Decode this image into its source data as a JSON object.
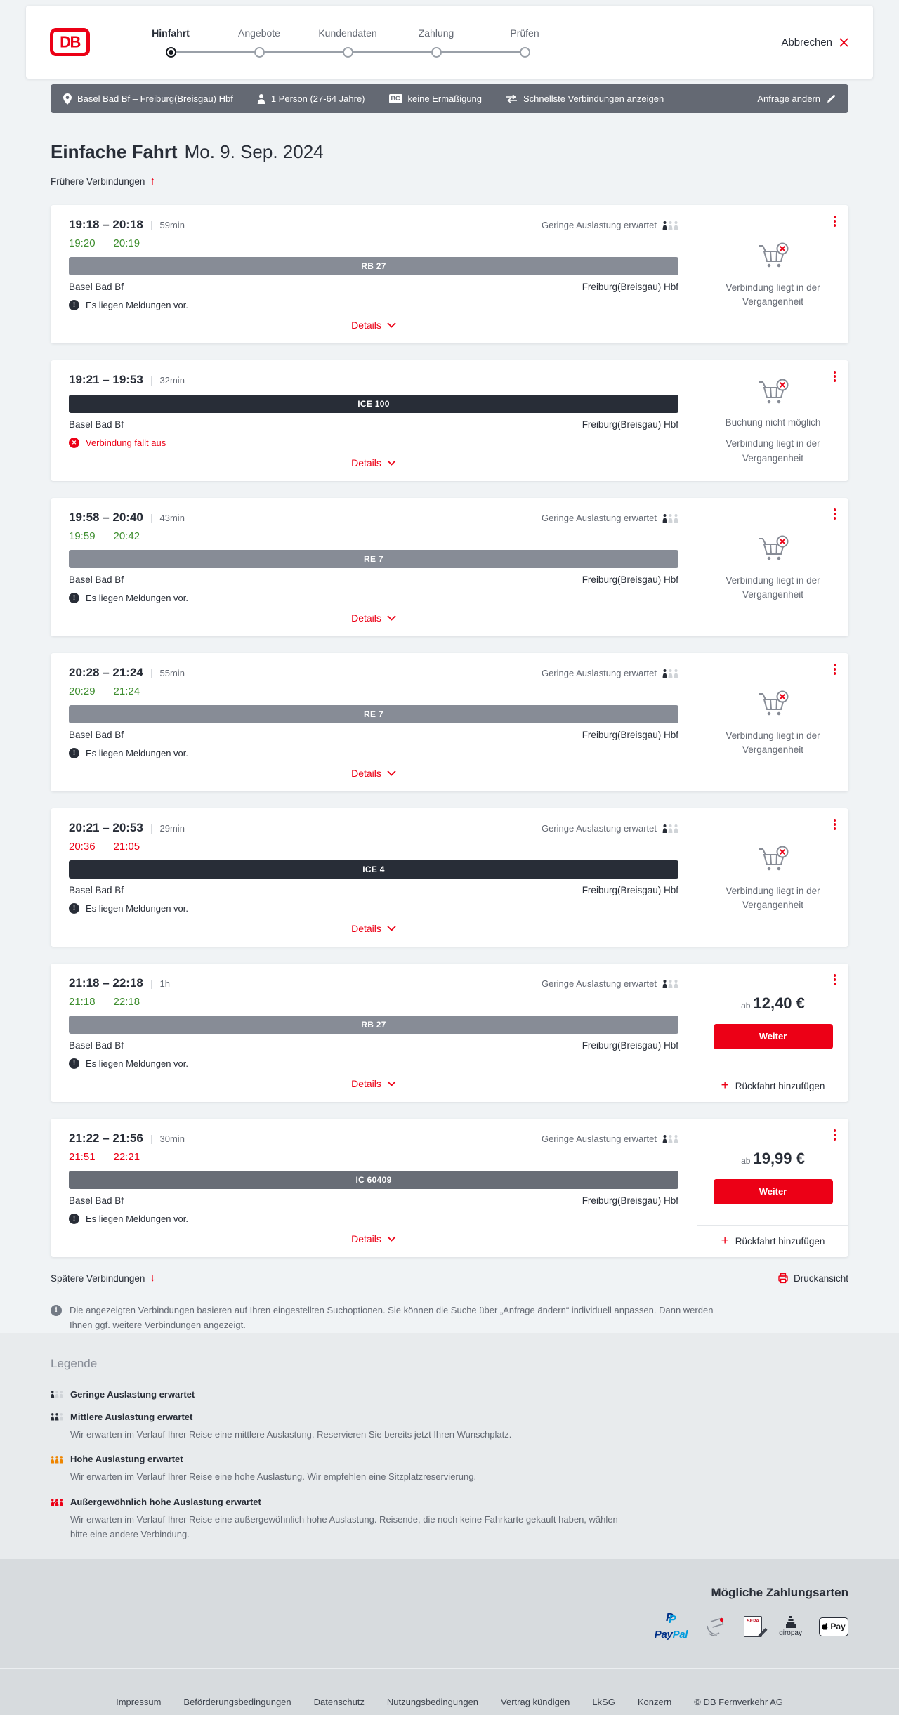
{
  "colors": {
    "brand_red": "#ec0016",
    "dark": "#282d37",
    "gray": "#646973",
    "green_ontime": "#3e8e2f",
    "bar_regional": "#878c96",
    "bar_ice": "#282d37",
    "bar_ic": "#686d76",
    "summary_bar_bg": "#646973"
  },
  "header": {
    "logo_text": "DB",
    "steps": [
      {
        "label": "Hinfahrt",
        "active": true
      },
      {
        "label": "Angebote",
        "active": false
      },
      {
        "label": "Kundendaten",
        "active": false
      },
      {
        "label": "Zahlung",
        "active": false
      },
      {
        "label": "Prüfen",
        "active": false
      }
    ],
    "cancel_label": "Abbrechen"
  },
  "summary_bar": {
    "route": "Basel Bad Bf – Freiburg(Breisgau) Hbf",
    "passenger": "1 Person (27-64 Jahre)",
    "bahncard_badge": "BC",
    "discount": "keine Ermäßigung",
    "fastest": "Schnellste Verbindungen anzeigen",
    "edit_label": "Anfrage ändern"
  },
  "results": {
    "title": "Einfache Fahrt",
    "date": "Mo. 9. Sep. 2024",
    "earlier_label": "Frühere Verbindungen",
    "later_label": "Spätere Verbindungen",
    "print_label": "Druckansicht",
    "note": "Die angezeigten Verbindungen basieren auf Ihren eingestellten Suchoptionen. Sie können die Suche über „Anfrage ändern“ individuell anpassen. Dann werden Ihnen ggf. weitere Verbindungen angezeigt."
  },
  "connections": [
    {
      "times": "19:18 – 20:18",
      "duration": "59min",
      "realtime": {
        "dep": "19:20",
        "arr": "20:19",
        "status": "ontime"
      },
      "occupancy": "Geringe Auslastung erwartet",
      "train": {
        "label": "RB 27",
        "color": "#878c96"
      },
      "from": "Basel Bad Bf",
      "to": "Freiburg(Breisgau) Hbf",
      "message": {
        "type": "info",
        "text": "Es liegen Meldungen vor."
      },
      "details_label": "Details",
      "side": {
        "type": "past",
        "extra": "",
        "note": "Verbindung liegt in der Vergangenheit"
      }
    },
    {
      "times": "19:21 – 19:53",
      "duration": "32min",
      "realtime": null,
      "occupancy": "",
      "train": {
        "label": "ICE 100",
        "color": "#282d37"
      },
      "from": "Basel Bad Bf",
      "to": "Freiburg(Breisgau) Hbf",
      "message": {
        "type": "cancelled",
        "text": "Verbindung fällt aus"
      },
      "details_label": "Details",
      "side": {
        "type": "past",
        "extra": "Buchung nicht möglich",
        "note": "Verbindung liegt in der Vergangenheit"
      }
    },
    {
      "times": "19:58 – 20:40",
      "duration": "43min",
      "realtime": {
        "dep": "19:59",
        "arr": "20:42",
        "status": "ontime"
      },
      "occupancy": "Geringe Auslastung erwartet",
      "train": {
        "label": "RE 7",
        "color": "#878c96"
      },
      "from": "Basel Bad Bf",
      "to": "Freiburg(Breisgau) Hbf",
      "message": {
        "type": "info",
        "text": "Es liegen Meldungen vor."
      },
      "details_label": "Details",
      "side": {
        "type": "past",
        "extra": "",
        "note": "Verbindung liegt in der Vergangenheit"
      }
    },
    {
      "times": "20:28 – 21:24",
      "duration": "55min",
      "realtime": {
        "dep": "20:29",
        "arr": "21:24",
        "status": "ontime"
      },
      "occupancy": "Geringe Auslastung erwartet",
      "train": {
        "label": "RE 7",
        "color": "#878c96"
      },
      "from": "Basel Bad Bf",
      "to": "Freiburg(Breisgau) Hbf",
      "message": {
        "type": "info",
        "text": "Es liegen Meldungen vor."
      },
      "details_label": "Details",
      "side": {
        "type": "past",
        "extra": "",
        "note": "Verbindung liegt in der Vergangenheit"
      }
    },
    {
      "times": "20:21 – 20:53",
      "duration": "29min",
      "realtime": {
        "dep": "20:36",
        "arr": "21:05",
        "status": "delayed"
      },
      "occupancy": "Geringe Auslastung erwartet",
      "train": {
        "label": "ICE 4",
        "color": "#282d37"
      },
      "from": "Basel Bad Bf",
      "to": "Freiburg(Breisgau) Hbf",
      "message": {
        "type": "info",
        "text": "Es liegen Meldungen vor."
      },
      "details_label": "Details",
      "side": {
        "type": "past",
        "extra": "",
        "note": "Verbindung liegt in der Vergangenheit"
      }
    },
    {
      "times": "21:18 – 22:18",
      "duration": "1h",
      "realtime": {
        "dep": "21:18",
        "arr": "22:18",
        "status": "ontime"
      },
      "occupancy": "Geringe Auslastung erwartet",
      "train": {
        "label": "RB 27",
        "color": "#878c96"
      },
      "from": "Basel Bad Bf",
      "to": "Freiburg(Breisgau) Hbf",
      "message": {
        "type": "info",
        "text": "Es liegen Meldungen vor."
      },
      "details_label": "Details",
      "side": {
        "type": "price",
        "prefix": "ab",
        "price": "12,40 €",
        "button": "Weiter",
        "return_label": "Rückfahrt hinzufügen"
      }
    },
    {
      "times": "21:22 – 21:56",
      "duration": "30min",
      "realtime": {
        "dep": "21:51",
        "arr": "22:21",
        "status": "delayed"
      },
      "occupancy": "Geringe Auslastung erwartet",
      "train": {
        "label": "IC 60409",
        "color": "#686d76"
      },
      "from": "Basel Bad Bf",
      "to": "Freiburg(Breisgau) Hbf",
      "message": {
        "type": "info",
        "text": "Es liegen Meldungen vor."
      },
      "details_label": "Details",
      "side": {
        "type": "price",
        "prefix": "ab",
        "price": "19,99 €",
        "button": "Weiter",
        "return_label": "Rückfahrt hinzufügen"
      }
    }
  ],
  "legend": {
    "heading": "Legende",
    "items": [
      {
        "level": "low",
        "title": "Geringe Auslastung erwartet",
        "desc": ""
      },
      {
        "level": "medium",
        "title": "Mittlere Auslastung erwartet",
        "desc": "Wir erwarten im Verlauf Ihrer Reise eine mittlere Auslastung. Reservieren Sie bereits jetzt Ihren Wunschplatz."
      },
      {
        "level": "high",
        "title": "Hohe Auslastung erwartet",
        "desc": "Wir erwarten im Verlauf Ihrer Reise eine hohe Auslastung. Wir empfehlen eine Sitzplatzreservierung."
      },
      {
        "level": "exceptional",
        "title": "Außergewöhnlich hohe Auslastung erwartet",
        "desc": "Wir erwarten im Verlauf Ihrer Reise eine außergewöhnlich hohe Auslastung. Reisende, die noch keine Fahrkarte gekauft haben, wählen bitte eine andere Verbindung."
      }
    ]
  },
  "payment": {
    "heading": "Mögliche Zahlungsarten",
    "methods": [
      {
        "name": "paypal",
        "word1": "Pay",
        "word2": "Pal"
      },
      {
        "name": "credit-card",
        "label": ""
      },
      {
        "name": "sepa",
        "label": "SEPA"
      },
      {
        "name": "giropay",
        "label": "giropay"
      },
      {
        "name": "apple-pay",
        "label": "Pay"
      }
    ]
  },
  "footer": {
    "links": [
      "Impressum",
      "Beförderungsbedingungen",
      "Datenschutz",
      "Nutzungsbedingungen",
      "Vertrag kündigen",
      "LkSG",
      "Konzern"
    ],
    "copyright": "© DB Fernverkehr AG"
  }
}
